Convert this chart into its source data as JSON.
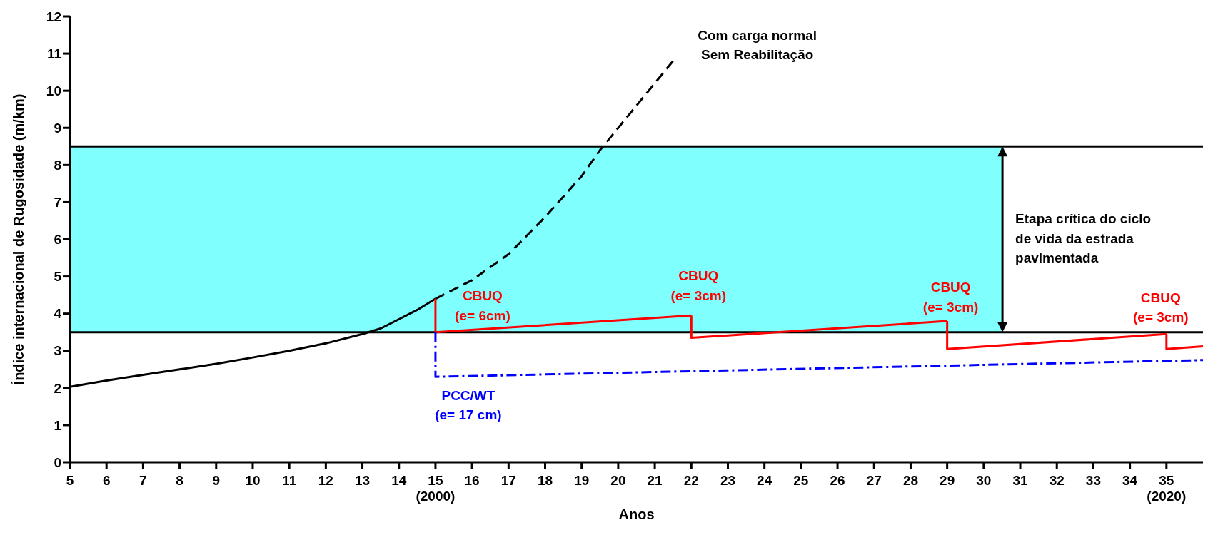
{
  "chart_data": {
    "type": "line",
    "xlabel": "Anos",
    "ylabel": "Índice internacional de Rugosidade (m/km)",
    "xlim": [
      5,
      36
    ],
    "ylim": [
      0,
      12
    ],
    "xticks": [
      5,
      6,
      7,
      8,
      9,
      10,
      11,
      12,
      13,
      14,
      {
        "value": 15,
        "label": "15\n(2000)"
      },
      16,
      17,
      18,
      19,
      20,
      21,
      22,
      23,
      24,
      25,
      26,
      27,
      28,
      29,
      30,
      31,
      32,
      33,
      34,
      {
        "value": 35,
        "label": "35\n(2020)"
      }
    ],
    "yticks": [
      0,
      1,
      2,
      3,
      4,
      5,
      6,
      7,
      8,
      9,
      10,
      11,
      12
    ],
    "marker": "none",
    "series": [
      {
        "color": "#000000",
        "line_style": "solid",
        "x": [
          5,
          6,
          7,
          8,
          9,
          10,
          11,
          12,
          13,
          13.5,
          14,
          14.5,
          15
        ],
        "values": [
          2.03,
          2.2,
          2.35,
          2.5,
          2.65,
          2.82,
          3.0,
          3.2,
          3.45,
          3.6,
          3.85,
          4.1,
          4.4
        ]
      },
      {
        "name": "Com carga normal\nSem Reabilitação",
        "color": "#000000",
        "line_style": "dashed",
        "x": [
          15,
          16,
          17,
          18,
          19,
          19.5,
          20,
          21,
          21.5
        ],
        "values": [
          4.4,
          4.9,
          5.6,
          6.6,
          7.7,
          8.4,
          9.0,
          10.2,
          10.8
        ]
      },
      {
        "name": "CBUQ\n(e= 6cm)",
        "color": "#ff0000",
        "line_style": "solid",
        "x": [
          15,
          15,
          22
        ],
        "values": [
          4.4,
          3.5,
          3.95
        ]
      },
      {
        "name": "CBUQ\n(e= 3cm)",
        "color": "#ff0000",
        "line_style": "solid",
        "x": [
          22,
          22,
          29
        ],
        "values": [
          3.95,
          3.35,
          3.8
        ]
      },
      {
        "name": "CBUQ\n(e= 3cm)",
        "color": "#ff0000",
        "line_style": "solid",
        "x": [
          29,
          29,
          35
        ],
        "values": [
          3.8,
          3.05,
          3.45
        ]
      },
      {
        "name": "CBUQ\n(e= 3cm)",
        "color": "#ff0000",
        "line_style": "solid",
        "x": [
          35,
          35,
          36
        ],
        "values": [
          3.45,
          3.05,
          3.12
        ]
      },
      {
        "name": "PCC/WT\n(e= 17 cm)",
        "color": "#0000ff",
        "line_style": "dashdot",
        "x": [
          15,
          15,
          36
        ],
        "values": [
          3.5,
          2.3,
          2.75
        ]
      }
    ],
    "bands": [
      {
        "axis": "y",
        "from": 3.5,
        "to": 8.5,
        "color": "#80ffff",
        "label": "Etapa crítica do ciclo\nde vida da estrada\npavimentada"
      }
    ],
    "ref_lines": [
      {
        "axis": "y",
        "value": 3.5,
        "color": "#000000"
      },
      {
        "axis": "y",
        "value": 8.5,
        "color": "#000000"
      }
    ]
  }
}
